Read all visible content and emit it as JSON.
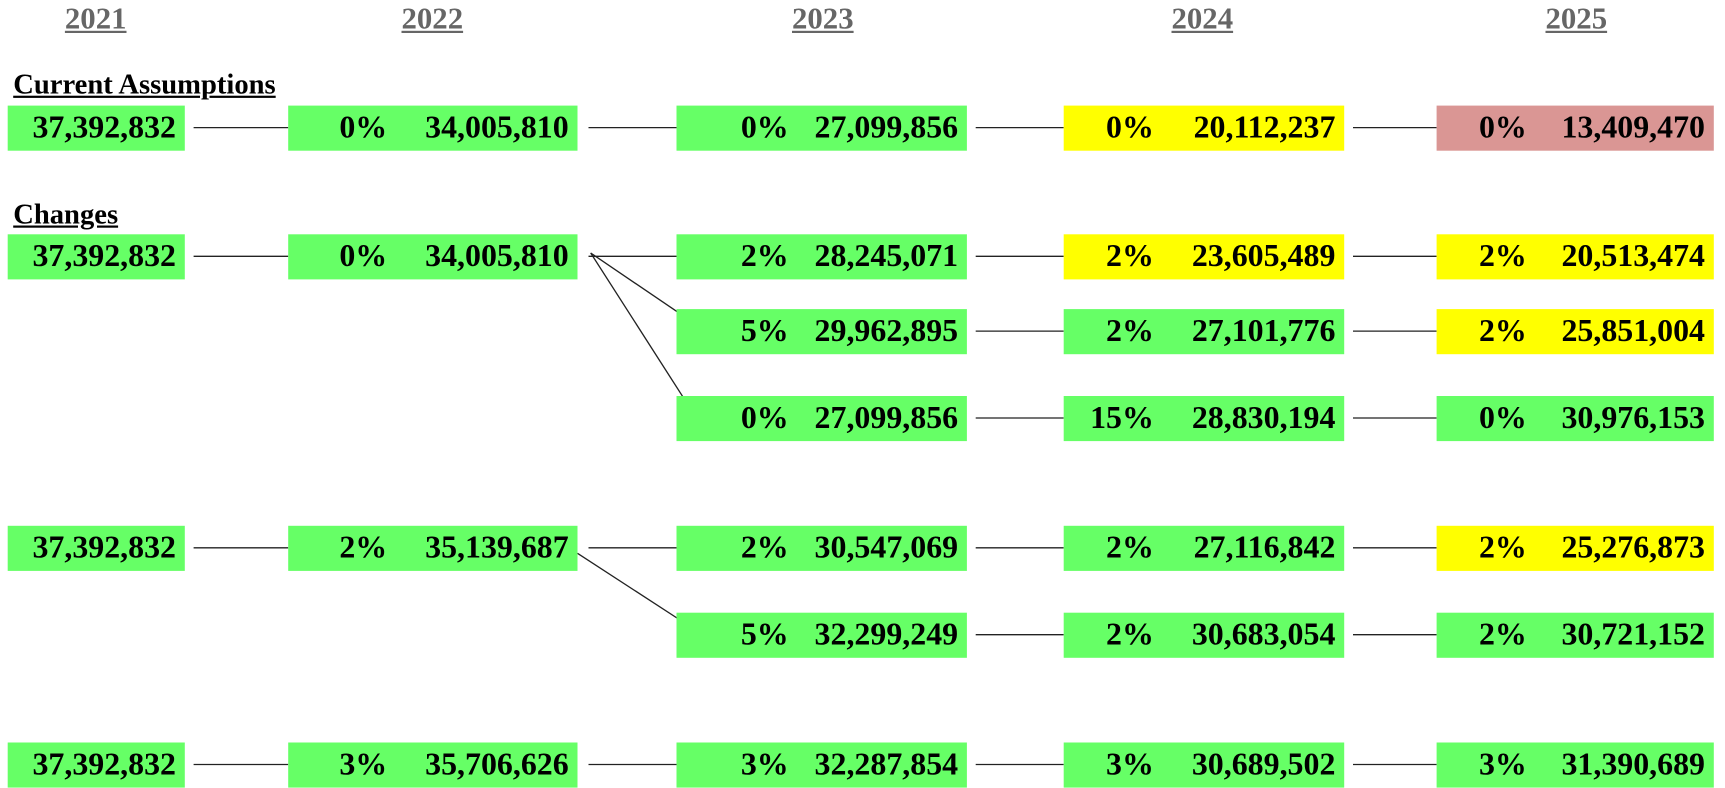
{
  "headers": [
    "2021",
    "2022",
    "2023",
    "2024",
    "2025"
  ],
  "sections": [
    "Current Assumptions",
    "Changes"
  ],
  "rows": [
    {
      "cells": [
        {
          "value": "37,392,832",
          "color": "#66ff66"
        },
        {
          "pct": "0%",
          "value": "34,005,810",
          "color": "#66ff66"
        },
        {
          "pct": "0%",
          "value": "27,099,856",
          "color": "#66ff66"
        },
        {
          "pct": "0%",
          "value": "20,112,237",
          "color": "#ffff00"
        },
        {
          "pct": "0%",
          "value": "13,409,470",
          "color": "#da9694"
        }
      ]
    },
    {
      "cells": [
        {
          "value": "37,392,832",
          "color": "#66ff66"
        },
        {
          "pct": "0%",
          "value": "34,005,810",
          "color": "#66ff66"
        },
        {
          "pct": "2%",
          "value": "28,245,071",
          "color": "#66ff66"
        },
        {
          "pct": "2%",
          "value": "23,605,489",
          "color": "#ffff00"
        },
        {
          "pct": "2%",
          "value": "20,513,474",
          "color": "#ffff00"
        }
      ]
    },
    {
      "cells": [
        null,
        null,
        {
          "pct": "5%",
          "value": "29,962,895",
          "color": "#66ff66"
        },
        {
          "pct": "2%",
          "value": "27,101,776",
          "color": "#66ff66"
        },
        {
          "pct": "2%",
          "value": "25,851,004",
          "color": "#ffff00"
        }
      ]
    },
    {
      "cells": [
        null,
        null,
        {
          "pct": "0%",
          "value": "27,099,856",
          "color": "#66ff66"
        },
        {
          "pct": "15%",
          "value": "28,830,194",
          "color": "#66ff66"
        },
        {
          "pct": "0%",
          "value": "30,976,153",
          "color": "#66ff66"
        }
      ]
    },
    {
      "cells": [
        {
          "value": "37,392,832",
          "color": "#66ff66"
        },
        {
          "pct": "2%",
          "value": "35,139,687",
          "color": "#66ff66"
        },
        {
          "pct": "2%",
          "value": "30,547,069",
          "color": "#66ff66"
        },
        {
          "pct": "2%",
          "value": "27,116,842",
          "color": "#66ff66"
        },
        {
          "pct": "2%",
          "value": "25,276,873",
          "color": "#ffff00"
        }
      ]
    },
    {
      "cells": [
        null,
        null,
        {
          "pct": "5%",
          "value": "32,299,249",
          "color": "#66ff66"
        },
        {
          "pct": "2%",
          "value": "30,683,054",
          "color": "#66ff66"
        },
        {
          "pct": "2%",
          "value": "30,721,152",
          "color": "#66ff66"
        }
      ]
    },
    {
      "cells": [
        {
          "value": "37,392,832",
          "color": "#66ff66"
        },
        {
          "pct": "3%",
          "value": "35,706,626",
          "color": "#66ff66"
        },
        {
          "pct": "3%",
          "value": "32,287,854",
          "color": "#66ff66"
        },
        {
          "pct": "3%",
          "value": "30,689,502",
          "color": "#66ff66"
        },
        {
          "pct": "3%",
          "value": "31,390,689",
          "color": "#66ff66"
        }
      ]
    }
  ]
}
